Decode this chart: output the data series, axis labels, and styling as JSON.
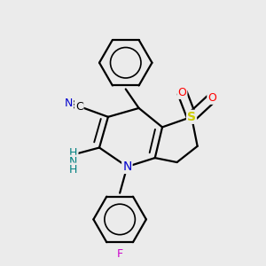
{
  "bg_color": "#ebebeb",
  "atom_colors": {
    "C": "#000000",
    "N": "#0000cd",
    "S": "#cccc00",
    "O": "#ff0000",
    "F": "#cc00cc",
    "NH": "#008080"
  },
  "bond_color": "#000000",
  "bond_width": 1.6,
  "figsize": [
    3.0,
    3.0
  ],
  "dpi": 100
}
